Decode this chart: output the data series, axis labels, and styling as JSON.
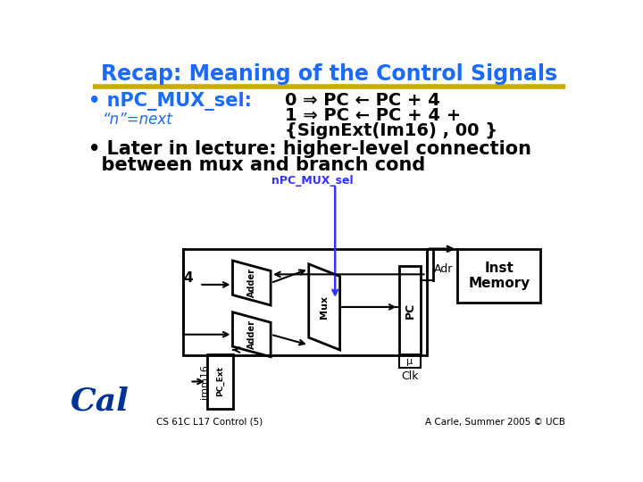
{
  "title": "Recap: Meaning of the Control Signals",
  "title_color": "#1a6aff",
  "title_underline_color": "#ccaa00",
  "bg_color": "#ffffff",
  "bullet1_main": "• nPC_MUX_sel:",
  "bullet1_sub": "“n”=next",
  "bullet1_right_line1": "0 ⇒ PC ← PC + 4",
  "bullet1_right_line2": "1 ⇒ PC ← PC + 4 +",
  "bullet1_right_line3": "{SignExt(Im16) , 00 }",
  "bullet2_line1": "• Later in lecture: higher-level connection",
  "bullet2_line2": "  between mux and branch cond",
  "label_nPC": "nPC_MUX_sel",
  "label_adr": "Adr",
  "label_inst": "Inst\nMemory",
  "label_4": "4",
  "label_mux": "Mux",
  "label_adder1": "Adder",
  "label_adder2": "Adder",
  "label_pc": "PC",
  "label_mu": "μ",
  "label_clk": "Clk",
  "label_imm16": "imm16",
  "label_pcext": "PC_Ext",
  "label_footer_left": "CS 61C L17 Control (5)",
  "label_footer_right": "A Carle, Summer 2005 © UCB",
  "blue_color": "#1a6aff",
  "dark_blue": "#1a1acc",
  "black_color": "#000000",
  "npc_label_color": "#3333ff"
}
